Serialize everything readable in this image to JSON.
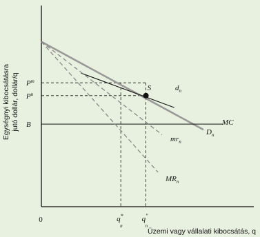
{
  "chart_data": {
    "type": "line",
    "title": "",
    "xlabel": "Üzemi vagy vállalati kibocsátás, q",
    "ylabel_line1": "Egységnyi kibocsátásra",
    "ylabel_line2": "jutó dollár, dollár/q",
    "origin_label": "0",
    "y_ticks": [
      {
        "label": "P",
        "sup": "m",
        "value": 0.666
      },
      {
        "label": "P",
        "sup": "n",
        "value": 0.597
      },
      {
        "label": "B",
        "sup": "",
        "value": 0.444
      }
    ],
    "x_ticks": [
      {
        "label": "q",
        "sup": "*",
        "sub": "n",
        "value": 0.49
      },
      {
        "label": "q",
        "sup": "″",
        "sub": "n",
        "value": 0.645
      }
    ],
    "point": {
      "label": "S",
      "x": 0.645,
      "y": 0.597
    },
    "series": [
      {
        "name": "D",
        "sub": "n",
        "style": "solid-gray",
        "points": [
          [
            0,
            0.887
          ],
          [
            1.0,
            0.414
          ]
        ]
      },
      {
        "name": "d",
        "sub": "n",
        "style": "solid-black",
        "points": [
          [
            0.245,
            0.718
          ],
          [
            0.82,
            0.533
          ]
        ]
      },
      {
        "name": "MC",
        "sub": "",
        "style": "solid-black",
        "points": [
          [
            0,
            0.444
          ],
          [
            1.12,
            0.444
          ]
        ]
      },
      {
        "name": "mr",
        "sub": "n",
        "style": "dashed",
        "points": [
          [
            0,
            0.887
          ],
          [
            0.745,
            0.387
          ]
        ]
      },
      {
        "name": "MR",
        "sub": "n",
        "style": "dashed",
        "points": [
          [
            0,
            0.887
          ],
          [
            0.72,
            0.185
          ]
        ]
      }
    ]
  }
}
